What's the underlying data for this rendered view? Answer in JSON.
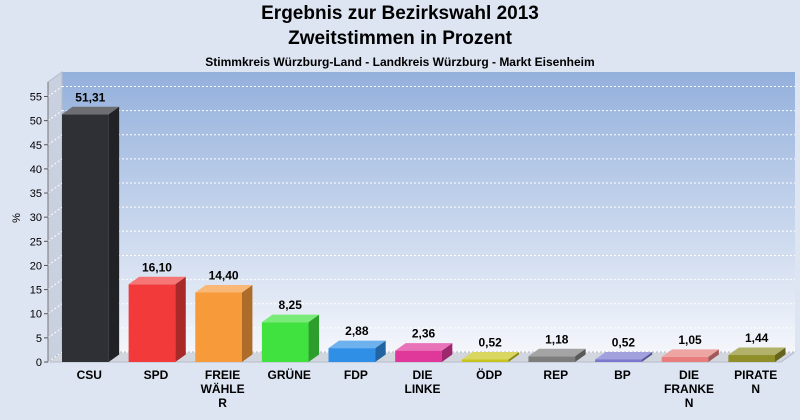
{
  "chart_data": {
    "type": "bar",
    "title": "Ergebnis zur Bezirkswahl 2013",
    "subtitle": "Zweitstimmen in Prozent",
    "caption": "Stimmkreis Würzburg-Land - Landkreis Würzburg - Markt Eisenheim",
    "ylabel": "%",
    "ylim": [
      0,
      58
    ],
    "yticks": [
      0,
      5,
      10,
      15,
      20,
      25,
      30,
      35,
      40,
      45,
      50,
      55
    ],
    "grid": true,
    "categories": [
      [
        "CSU"
      ],
      [
        "SPD"
      ],
      [
        "FREIE",
        "WÄHLE",
        "R"
      ],
      [
        "GRÜNE"
      ],
      [
        "FDP"
      ],
      [
        "DIE",
        "LINKE"
      ],
      [
        "ÖDP"
      ],
      [
        "REP"
      ],
      [
        "BP"
      ],
      [
        "DIE",
        "FRANKE",
        "N"
      ],
      [
        "PIRATE",
        "N"
      ]
    ],
    "values": [
      51.31,
      16.1,
      14.4,
      8.25,
      2.88,
      2.36,
      0.52,
      1.18,
      0.52,
      1.05,
      1.44
    ],
    "value_labels": [
      "51,31",
      "16,10",
      "14,40",
      "8,25",
      "2,88",
      "2,36",
      "0,52",
      "1,18",
      "0,52",
      "1,05",
      "1,44"
    ],
    "colors": [
      "#2f3035",
      "#f23a3a",
      "#f79a3a",
      "#3fe23f",
      "#2f8fe6",
      "#e0379b",
      "#c8c41f",
      "#7d7d7d",
      "#7b78cf",
      "#e87d7d",
      "#8f8f2a"
    ]
  }
}
